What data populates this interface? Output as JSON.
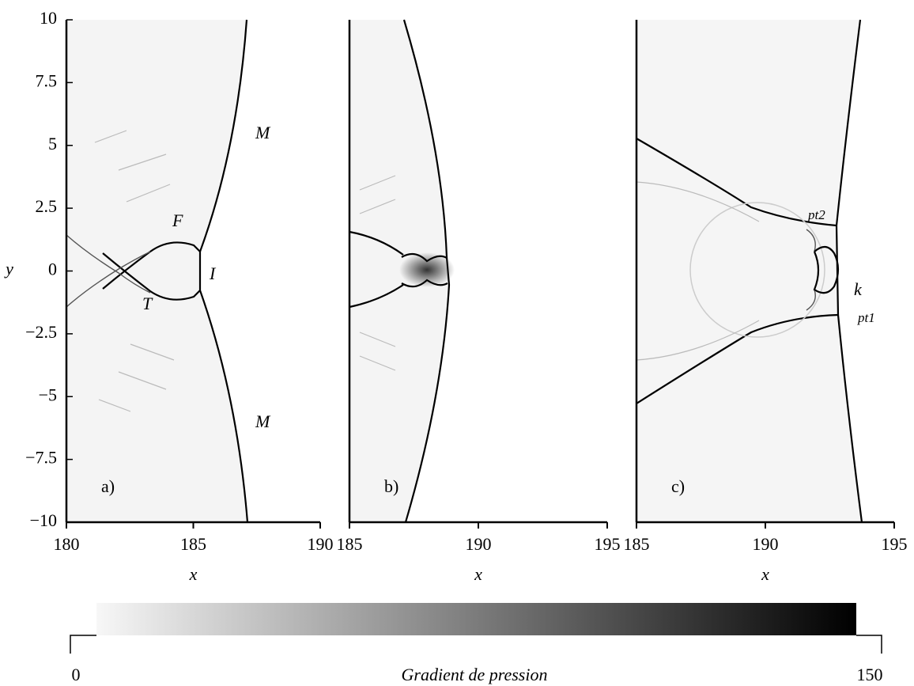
{
  "chart_data": [
    {
      "type": "image",
      "label": "a)",
      "xlabel": "x",
      "ylabel": "y",
      "xlim": [
        180,
        190
      ],
      "ylim": [
        -10,
        10
      ],
      "xticks": [
        180,
        185,
        190
      ],
      "yticks": [
        10,
        7.5,
        5,
        2.5,
        0,
        {
          "value": -2.5,
          "label": "−2.5"
        },
        {
          "value": -5,
          "label": "−5"
        },
        {
          "value": -7.5,
          "label": "−7.5"
        },
        {
          "value": -10,
          "label": "−10"
        }
      ],
      "annotations": [
        "F",
        "I",
        "T",
        "M",
        "M"
      ]
    },
    {
      "type": "image",
      "label": "b)",
      "xlabel": "x",
      "xlim": [
        185,
        195
      ],
      "ylim": [
        -10,
        10
      ],
      "xticks": [
        185,
        190,
        195
      ]
    },
    {
      "type": "image",
      "label": "c)",
      "xlabel": "x",
      "xlim": [
        185,
        195
      ],
      "ylim": [
        -10,
        10
      ],
      "xticks": [
        185,
        190,
        195
      ],
      "annotations": [
        "pt2",
        "k",
        "pt1"
      ]
    }
  ],
  "colorbar": {
    "label": "Gradient de pression",
    "lim": [
      0,
      150
    ],
    "ticks": [
      0,
      150
    ],
    "colors": [
      "#f7f7f7",
      "#000000"
    ]
  }
}
